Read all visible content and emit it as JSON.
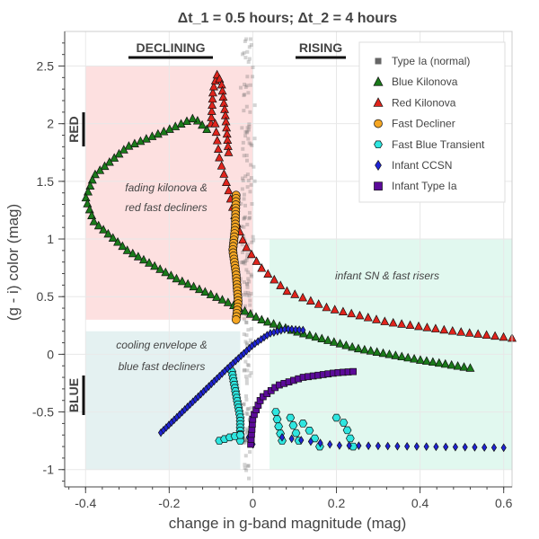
{
  "chart_data": {
    "type": "scatter",
    "title": "Δt_1 = 0.5 hours; Δt_2 = 4 hours",
    "xlabel": "change in g-band magnitude (mag)",
    "ylabel": "(g - i) color (mag)",
    "xlim": [
      -0.45,
      0.62
    ],
    "ylim": [
      -1.15,
      2.8
    ],
    "xticks": [
      -0.4,
      -0.2,
      0,
      0.2,
      0.4,
      0.6
    ],
    "xtick_labels": [
      "-0.4",
      "-0.2",
      "0",
      "0.2",
      "0.4",
      "0.6"
    ],
    "yticks": [
      -1,
      -0.5,
      0,
      0.5,
      1,
      1.5,
      2,
      2.5
    ],
    "ytick_labels": [
      "-1",
      "-0.5",
      "0",
      "0.5",
      "1",
      "1.5",
      "2",
      "2.5"
    ],
    "grid": true,
    "legend_position": "top-right",
    "header_labels": {
      "declining": "DECLINING",
      "rising": "RISING"
    },
    "side_labels": {
      "red": "RED",
      "blue": "BLUE"
    },
    "regions": [
      {
        "label": "fading kilonova & red fast decliners",
        "x": [
          -0.4,
          0.0
        ],
        "y": [
          0.3,
          2.5
        ],
        "color": "#fde0e0"
      },
      {
        "label": "infant SN & fast risers",
        "x": [
          0.04,
          0.62
        ],
        "y": [
          -1.0,
          1.0
        ],
        "color": "#e1f8ef"
      },
      {
        "label": "cooling envelope & blue fast decliners",
        "x": [
          -0.4,
          -0.03
        ],
        "y": [
          -1.0,
          0.2
        ],
        "color": "#e4f1f1"
      }
    ],
    "series": [
      {
        "name": "Type Ia (normal)",
        "marker": "square",
        "color": "#666666"
      },
      {
        "name": "Blue Kilonova",
        "marker": "triangle",
        "color": "#1a7a1a"
      },
      {
        "name": "Red Kilonova",
        "marker": "triangle",
        "color": "#e0241c"
      },
      {
        "name": "Fast Decliner",
        "marker": "circle",
        "color": "#f5a623"
      },
      {
        "name": "Fast Blue Transient",
        "marker": "hexagon",
        "color": "#2ee6e0"
      },
      {
        "name": "Infant CCSN",
        "marker": "diamond",
        "color": "#1f24d6"
      },
      {
        "name": "Infant Type Ia",
        "marker": "square",
        "color": "#5b0a99"
      }
    ]
  }
}
